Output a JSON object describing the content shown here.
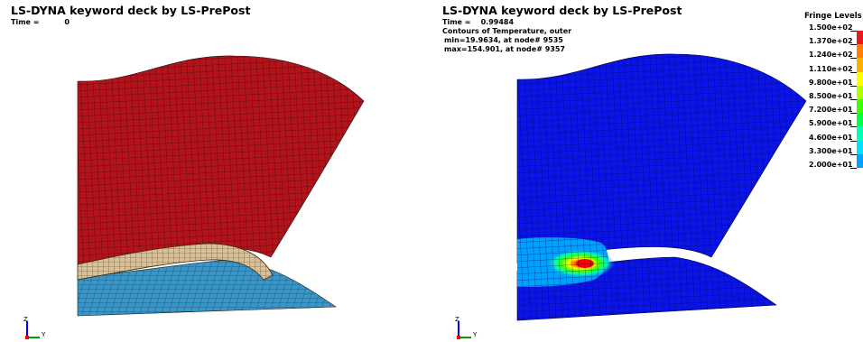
{
  "left_view": {
    "title": "LS-DYNA keyword deck by LS-PrePost",
    "time_label": "Time =",
    "time_value": "0"
  },
  "right_view": {
    "title": "LS-DYNA keyword deck by LS-PrePost",
    "time_label": "Time =",
    "time_value": "0.99484",
    "contour_label": "Contours of Temperature, outer",
    "min_text": "min=19.9634, at node# 9535",
    "max_text": "max=154.901, at node# 9357"
  },
  "axis_triad": {
    "z_label": "Z",
    "y_label": "Y"
  },
  "legend": {
    "title": "Fringe Levels",
    "levels": [
      {
        "label": "1.500e+02",
        "color": "#e41a1c"
      },
      {
        "label": "1.370e+02",
        "color": "#ff7f00"
      },
      {
        "label": "1.240e+02",
        "color": "#ffb000"
      },
      {
        "label": "1.110e+02",
        "color": "#ffff00"
      },
      {
        "label": "9.800e+01",
        "color": "#b0ff00"
      },
      {
        "label": "8.500e+01",
        "color": "#40ff00"
      },
      {
        "label": "7.200e+01",
        "color": "#00ff40"
      },
      {
        "label": "5.900e+01",
        "color": "#00ffb0"
      },
      {
        "label": "4.600e+01",
        "color": "#00e0ff"
      },
      {
        "label": "3.300e+01",
        "color": "#00a0ff"
      },
      {
        "label": "2.000e+01",
        "color": "#0000ff"
      }
    ]
  },
  "colors": {
    "sheet_left": "#b3141b",
    "tube_left": "#d8c19a",
    "die_left": "#3a96c8",
    "cold": "#0a14e6",
    "mesh_line": "#1a1a1a"
  }
}
